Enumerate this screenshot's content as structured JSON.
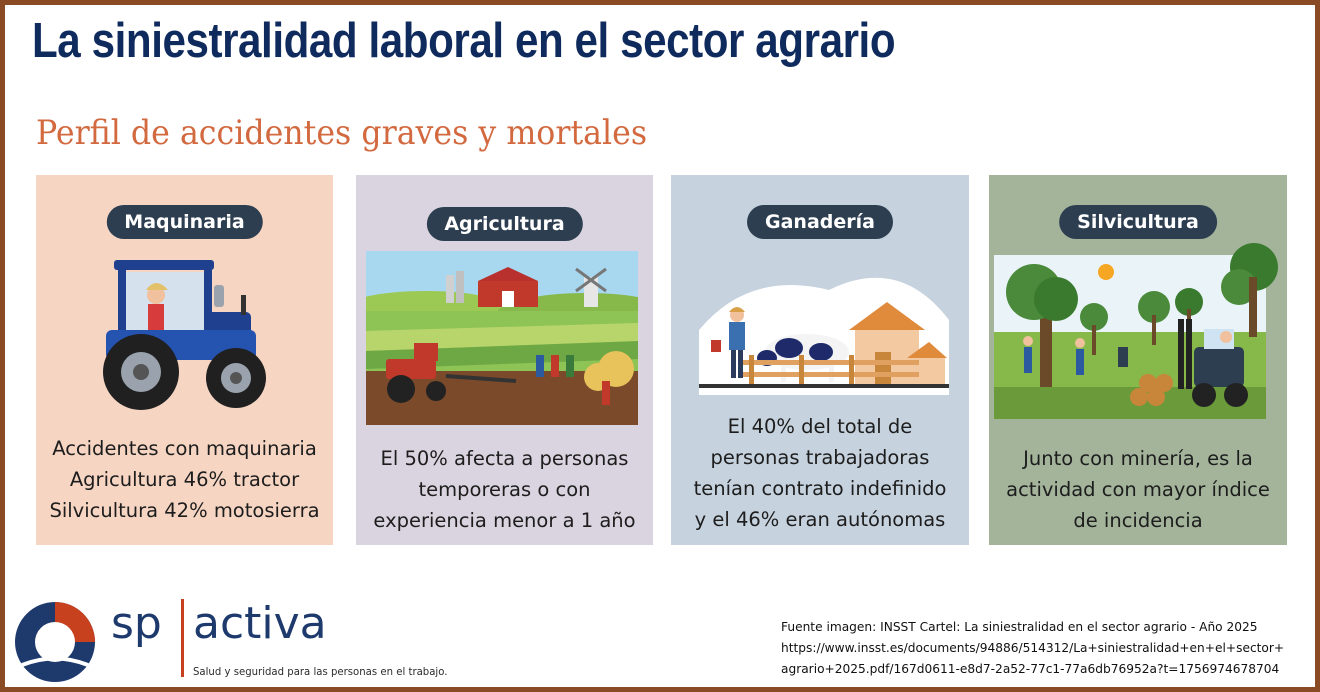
{
  "header": {
    "title": "La siniestralidad laboral en el sector agrario",
    "subtitle": "Perfil de accidentes graves y mortales"
  },
  "cards": [
    {
      "label": "Maquinaria",
      "lines": [
        "Accidentes con maquinaria",
        "Agricultura 46% tractor",
        "Silvicultura 42% motosierra"
      ],
      "illustration": "tractor-with-driver",
      "background": "#f6d5c3"
    },
    {
      "label": "Agricultura",
      "lines": [
        "El 50% afecta a personas",
        "temporeras o con",
        "experiencia menor a 1 año"
      ],
      "illustration": "farm-field-with-tractor",
      "background": "#d9d4df"
    },
    {
      "label": "Ganadería",
      "lines": [
        "El 40% del total de",
        "personas trabajadoras",
        "tenían contrato indefinido",
        "y el 46% eran autónomas"
      ],
      "illustration": "farmer-with-cow-and-barn",
      "background": "#c6d2de"
    },
    {
      "label": "Silvicultura",
      "lines": [
        "Junto con minería, es la",
        "actividad con mayor índice",
        "de incidencia"
      ],
      "illustration": "forest-workers-with-forklift",
      "background": "#a3b49b"
    }
  ],
  "brand": {
    "sp": "sp",
    "activa": "activa",
    "tagline": "Salud y seguridad para las personas en el trabajo."
  },
  "source": {
    "lines": [
      "Fuente imagen: INSST Cartel: La siniestralidad en el sector agrario - Año 2025",
      "https://www.insst.es/documents/94886/514312/La+siniestralidad+en+el+sector+",
      "agrario+2025.pdf/167d0611-e8d7-2a52-77c1-77a6db76952a?t=1756974678704"
    ]
  },
  "colors": {
    "title": "#0f2a5c",
    "subtitle": "#d2693f",
    "pill": "#2c3e50",
    "frame": "#8a4a23",
    "brand_blue": "#1e3a6d",
    "brand_red": "#c8411e"
  }
}
